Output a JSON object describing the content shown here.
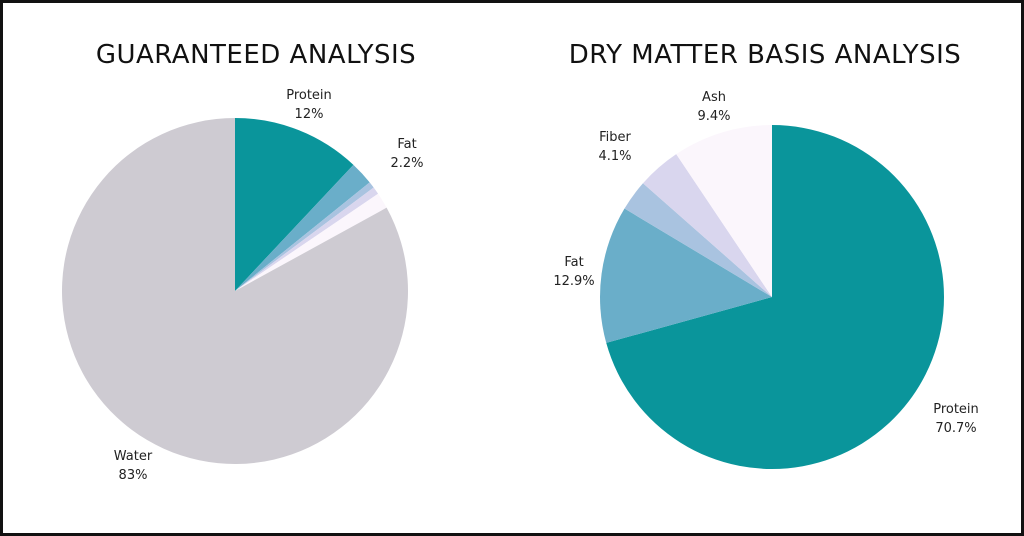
{
  "chart_data": [
    {
      "type": "pie",
      "title": "GUARANTEED ANALYSIS",
      "slices": [
        {
          "name": "Protein",
          "value": 12,
          "display": "12%",
          "color": "#0a959b",
          "label": true
        },
        {
          "name": "Fat",
          "value": 2.2,
          "display": "2.2%",
          "color": "#6aaec9",
          "label": true
        },
        {
          "name": "",
          "value": 0.6,
          "display": "",
          "color": "#a9c3e0",
          "label": false
        },
        {
          "name": "",
          "value": 0.7,
          "display": "",
          "color": "#d9d6ee",
          "label": false
        },
        {
          "name": "",
          "value": 1.5,
          "display": "",
          "color": "#fbf6fc",
          "label": false
        },
        {
          "name": "Water",
          "value": 83,
          "display": "83%",
          "color": "#cecbd2",
          "label": true
        }
      ]
    },
    {
      "type": "pie",
      "title": "DRY MATTER BASIS ANALYSIS",
      "slices": [
        {
          "name": "Protein",
          "value": 70.7,
          "display": "70.7%",
          "color": "#0a959b",
          "label": true
        },
        {
          "name": "Fat",
          "value": 12.9,
          "display": "12.9%",
          "color": "#6aaec9",
          "label": true
        },
        {
          "name": "",
          "value": 2.9,
          "display": "",
          "color": "#a9c3e0",
          "label": false
        },
        {
          "name": "Fiber",
          "value": 4.1,
          "display": "4.1%",
          "color": "#d9d6ee",
          "label": true
        },
        {
          "name": "Ash",
          "value": 9.4,
          "display": "9.4%",
          "color": "#fbf6fc",
          "label": true
        }
      ]
    }
  ]
}
